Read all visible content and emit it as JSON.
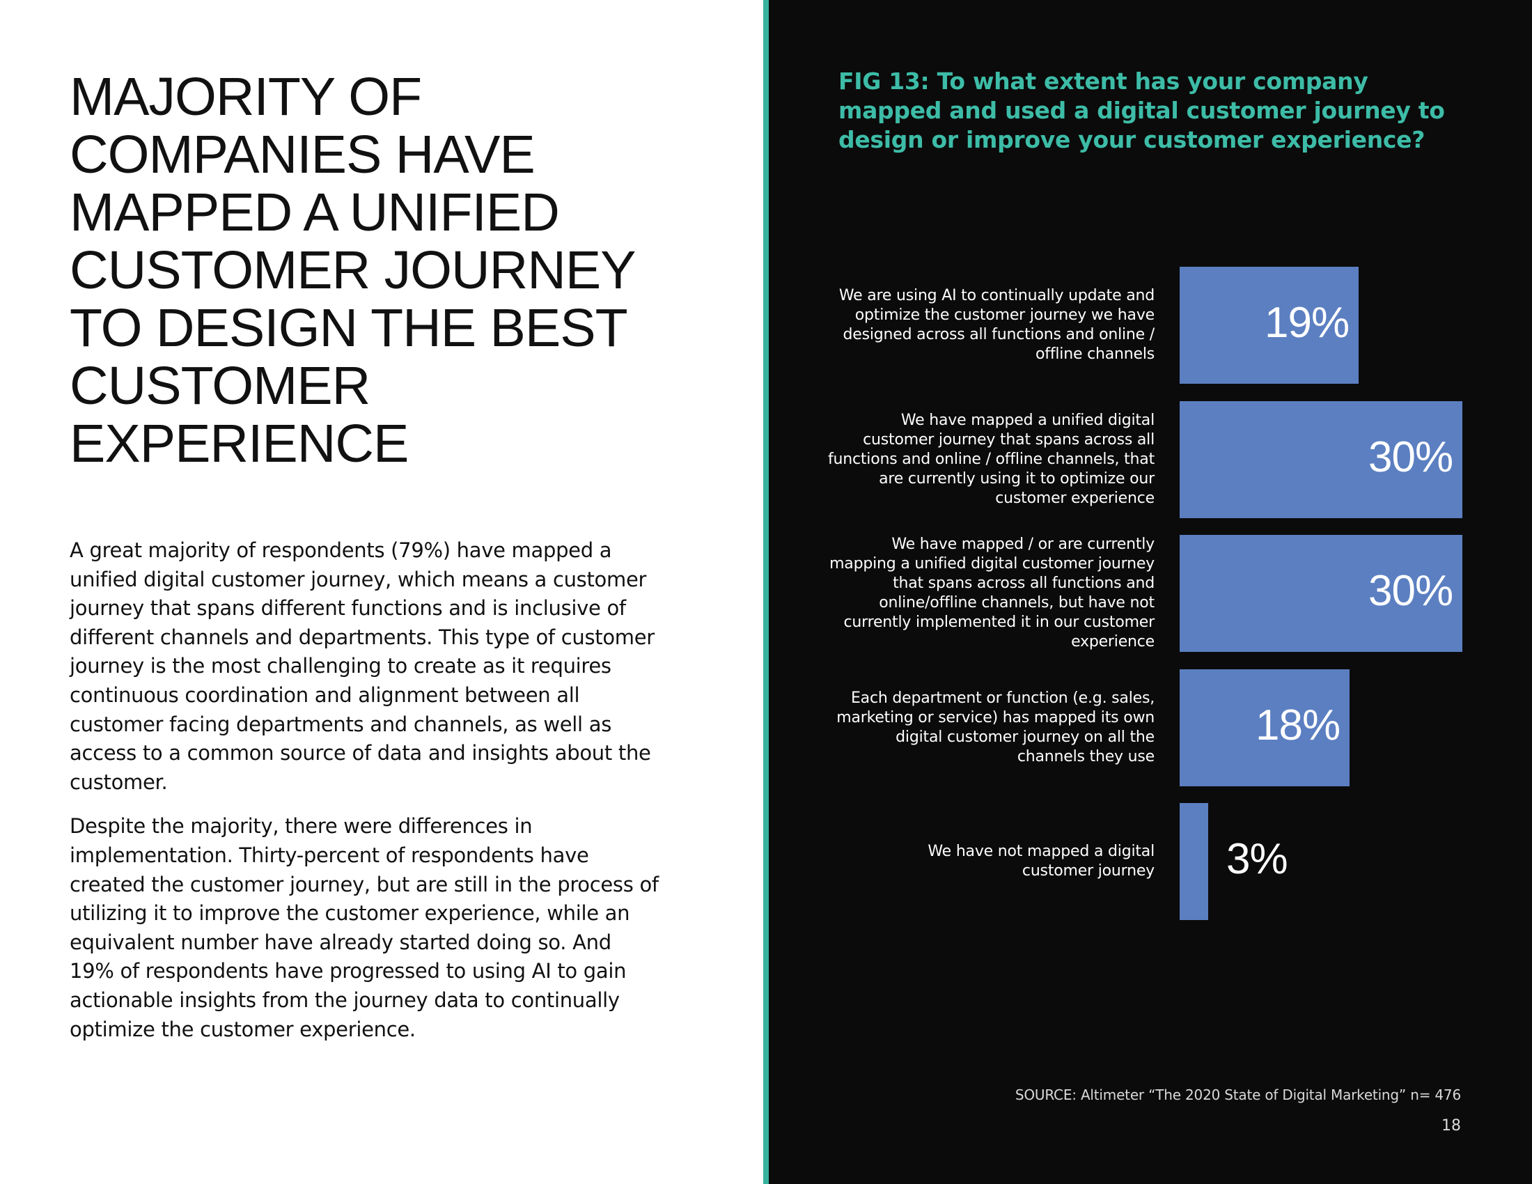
{
  "page": {
    "headline": "MAJORITY OF COMPANIES HAVE MAPPED A UNIFIED CUSTOMER JOURNEY TO DESIGN THE BEST CUSTOMER EXPERIENCE",
    "paragraphs": [
      "A great majority of respondents (79%) have mapped a unified digital customer journey, which means a customer journey that spans different functions and is inclusive of different channels and departments. This type of customer journey is the most challenging to create as it requires continuous coordination and alignment between all customer facing departments and channels, as well as access to a common source of data and insights about the customer.",
      "Despite the majority, there were differences in implementation. Thirty-percent of respondents have created the customer journey, but are still in the process of utilizing it to improve the customer experience, while an equivalent number have already started doing so. And 19% of respondents have progressed to using AI to gain actionable insights from the journey data to continually optimize the customer experience."
    ],
    "source": "SOURCE: Altimeter “The 2020 State of Digital Marketing” n= 476",
    "page_number": "18"
  },
  "colors": {
    "accent": "#37b39f",
    "fig_title": "#3dbca7",
    "bar": "#5b7fc1",
    "right_background": "#0b0b0b"
  },
  "chart_data": {
    "type": "bar",
    "orientation": "horizontal",
    "title": "FIG 13: To what extent has your company mapped and used a digital customer journey to design or improve your customer experience?",
    "categories": [
      "We are using AI to continually update and optimize the customer journey we have designed across all functions and online / offline channels",
      "We have mapped a unified digital customer journey that spans across all functions and online / offline channels, that are currently using it to optimize our customer experience",
      "We have mapped / or are currently mapping a unified digital customer journey that spans across all functions and online/offline channels, but have not currently implemented it in our customer experience",
      "Each department or function (e.g. sales, marketing or service) has mapped its own digital customer journey on all the channels they use",
      "We have not mapped a digital customer journey"
    ],
    "values": [
      19,
      30,
      30,
      18,
      3
    ],
    "value_labels": [
      "19%",
      "30%",
      "30%",
      "18%",
      "3%"
    ],
    "xlim": [
      0,
      30
    ],
    "unit": "%",
    "grid": false,
    "legend": false
  }
}
